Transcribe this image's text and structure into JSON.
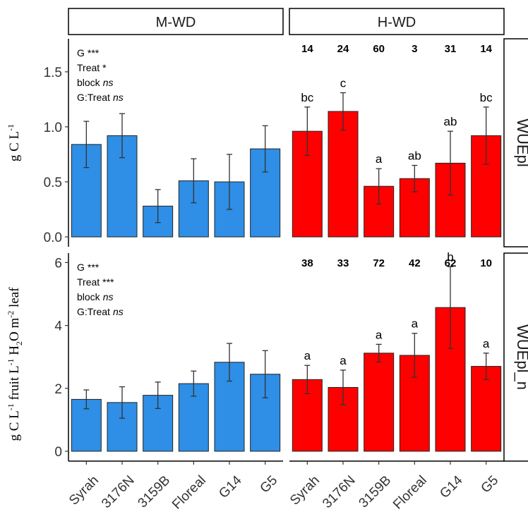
{
  "chart_data": {
    "type": "bar",
    "categories": [
      "Syrah",
      "3176N",
      "3159B",
      "Floreal",
      "G14",
      "G5"
    ],
    "columns": [
      "M-WD",
      "H-WD"
    ],
    "rows": [
      "WUEpl",
      "WUEpl_n"
    ],
    "colors": {
      "M-WD": "#2f8ee5",
      "H-WD": "#ff0000"
    },
    "ylabels": [
      {
        "row": "WUEpl",
        "base": "g C L",
        "sup": "-1"
      },
      {
        "row": "WUEpl_n",
        "parts": [
          {
            "t": "g C L"
          },
          {
            "t": "-1",
            "sup": true
          },
          {
            "t": " fruit L"
          },
          {
            "t": "-1",
            "sup": true
          },
          {
            "t": " H"
          },
          {
            "t": "2",
            "sub": true
          },
          {
            "t": "O m"
          },
          {
            "t": "-2",
            "sup": true
          },
          {
            "t": " leaf"
          }
        ]
      }
    ],
    "panels": [
      {
        "row": "WUEpl",
        "ylim": [
          0,
          1.8
        ],
        "yticks": [
          "0.0",
          "0.5",
          "1.0",
          "1.5"
        ],
        "stats": [
          {
            "term": "G",
            "sig": "***"
          },
          {
            "term": "Treat",
            "sig": "*"
          },
          {
            "term": "block",
            "sig": "ns"
          },
          {
            "term": "G:Treat",
            "sig": "ns"
          }
        ],
        "counts": [
          "14",
          "24",
          "60",
          "3",
          "31",
          "14"
        ],
        "letters": [
          "bc",
          "c",
          "a",
          "ab",
          "ab",
          "bc"
        ],
        "series": [
          {
            "name": "M-WD",
            "values": [
              0.84,
              0.92,
              0.28,
              0.51,
              0.5,
              0.8
            ],
            "errors": [
              0.21,
              0.2,
              0.15,
              0.2,
              0.25,
              0.21
            ]
          },
          {
            "name": "H-WD",
            "values": [
              0.96,
              1.14,
              0.46,
              0.53,
              0.67,
              0.92
            ],
            "errors": [
              0.22,
              0.17,
              0.16,
              0.12,
              0.29,
              0.26
            ]
          }
        ]
      },
      {
        "row": "WUEpl_n",
        "ylim": [
          0,
          6.3
        ],
        "yticks": [
          "0",
          "2",
          "4",
          "6"
        ],
        "stats": [
          {
            "term": "G",
            "sig": "***"
          },
          {
            "term": "Treat",
            "sig": "***"
          },
          {
            "term": "block",
            "sig": "ns"
          },
          {
            "term": "G:Treat",
            "sig": "ns"
          }
        ],
        "counts": [
          "38",
          "33",
          "72",
          "42",
          "62",
          "10"
        ],
        "letters": [
          "a",
          "a",
          "a",
          "a",
          "b",
          "a"
        ],
        "series": [
          {
            "name": "M-WD",
            "values": [
              1.65,
              1.55,
              1.78,
              2.15,
              2.83,
              2.45
            ],
            "errors": [
              0.3,
              0.5,
              0.42,
              0.4,
              0.6,
              0.75
            ]
          },
          {
            "name": "H-WD",
            "values": [
              2.28,
              2.03,
              3.12,
              3.05,
              4.57,
              2.7
            ],
            "errors": [
              0.45,
              0.55,
              0.28,
              0.7,
              1.3,
              0.42
            ]
          }
        ]
      }
    ]
  }
}
